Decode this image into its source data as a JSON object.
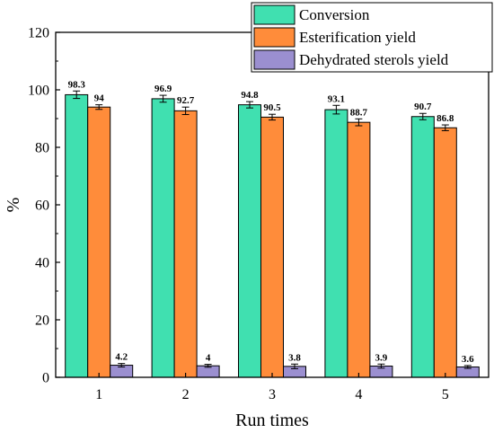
{
  "chart_data": {
    "type": "bar",
    "title": "",
    "xlabel": "Run times",
    "ylabel": "%",
    "categories": [
      "1",
      "2",
      "3",
      "4",
      "5"
    ],
    "ylim": [
      0,
      120
    ],
    "yticks": [
      "0",
      "20",
      "40",
      "60",
      "80",
      "100",
      "120"
    ],
    "grid": false,
    "legend_position": "top-right",
    "series": [
      {
        "name": "Conversion",
        "color": "#40e0b0",
        "values": [
          98.3,
          96.9,
          94.8,
          93.1,
          90.7
        ],
        "labels": [
          "98.3",
          "96.9",
          "94.8",
          "93.1",
          "90.7"
        ],
        "errors": [
          1.3,
          1.2,
          1.1,
          1.5,
          1.1
        ]
      },
      {
        "name": "Esterification yield",
        "color": "#ff8c3a",
        "values": [
          94,
          92.7,
          90.5,
          88.7,
          86.8
        ],
        "labels": [
          "94",
          "92.7",
          "90.5",
          "88.7",
          "86.8"
        ],
        "errors": [
          0.8,
          1.3,
          1.0,
          1.2,
          1.0
        ]
      },
      {
        "name": "Dehydrated sterols yield",
        "color": "#9b8fd0",
        "values": [
          4.2,
          4,
          3.8,
          3.9,
          3.6
        ],
        "labels": [
          "4.2",
          "4",
          "3.8",
          "3.9",
          "3.6"
        ],
        "errors": [
          0.6,
          0.5,
          0.8,
          0.7,
          0.5
        ]
      }
    ]
  }
}
